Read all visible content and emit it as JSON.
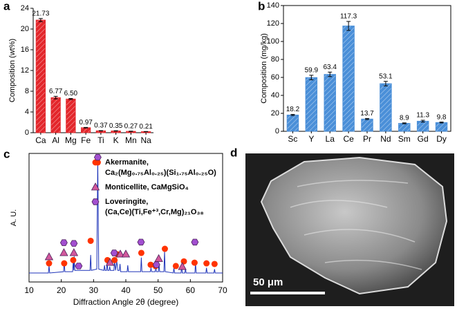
{
  "chart_data": [
    {
      "type": "bar",
      "panel_label": "a",
      "ylabel": "Composition (wt%)",
      "categories": [
        "Ca",
        "Al",
        "Mg",
        "Fe",
        "Ti",
        "K",
        "Mn",
        "Na"
      ],
      "values": [
        21.73,
        6.77,
        6.5,
        0.97,
        0.37,
        0.35,
        0.27,
        0.21
      ],
      "value_labels": [
        "21.73",
        "6.77",
        "6.50",
        "0.97",
        "0.37",
        "0.35",
        "0.27",
        "0.21"
      ],
      "errors": [
        0.3,
        0.25,
        0.1,
        0.05,
        0.03,
        0.03,
        0.03,
        0.02
      ],
      "color": "#e3262b",
      "ylim": [
        0,
        24
      ],
      "yticks": [
        0,
        4,
        8,
        12,
        16,
        20,
        24
      ],
      "box": false
    },
    {
      "type": "bar",
      "panel_label": "b",
      "ylabel": "Composition (mg/kg)",
      "categories": [
        "Sc",
        "Y",
        "La",
        "Ce",
        "Pr",
        "Nd",
        "Sm",
        "Gd",
        "Dy"
      ],
      "values": [
        18.2,
        59.9,
        63.4,
        117.3,
        13.7,
        53.1,
        8.9,
        11.3,
        9.8
      ],
      "errors": [
        0.6,
        2.5,
        2.5,
        5,
        0.6,
        2.5,
        0.5,
        1,
        0.5
      ],
      "color": "#4a8fd8",
      "ylim": [
        0,
        140
      ],
      "yticks": [
        0,
        20,
        40,
        60,
        80,
        100,
        120,
        140
      ],
      "box": true
    },
    {
      "type": "line",
      "panel_label": "c",
      "xlabel": "Diffraction Angle 2θ (degree)",
      "ylabel": "A. U.",
      "color": "#1c32b8",
      "xlim": [
        10,
        70
      ],
      "xticks": [
        10,
        20,
        30,
        40,
        50,
        60,
        70
      ],
      "ylim": [
        0,
        100
      ],
      "x": [
        10,
        16.0,
        16.2,
        16.4,
        20.7,
        20.9,
        21.1,
        23.5,
        23.7,
        23.85,
        24.0,
        24.2,
        28.9,
        29.1,
        29.3,
        31.0,
        31.3,
        31.6,
        33.2,
        33.4,
        33.6,
        34.0,
        34.2,
        34.4,
        34.8,
        35.0,
        35.2,
        36.3,
        36.5,
        36.8,
        37.2,
        37.5,
        38.0,
        38.2,
        38.4,
        40.4,
        40.6,
        40.8,
        44.6,
        44.8,
        45.0,
        47.6,
        47.8,
        48.0,
        49.1,
        49.3,
        49.5,
        50.1,
        50.3,
        50.5,
        51.8,
        52.0,
        52.2,
        54.7,
        54.9,
        55.1,
        57.1,
        57.3,
        57.5,
        58.3,
        58.5,
        58.7,
        61.4,
        61.6,
        61.8,
        64.8,
        65.0,
        65.2,
        67.3,
        67.5,
        67.7,
        70
      ],
      "values": [
        7,
        7,
        13,
        7,
        8,
        16,
        8,
        8,
        16,
        9,
        20,
        9,
        9,
        21,
        9,
        10,
        96,
        10,
        9,
        13,
        9,
        9,
        15,
        9,
        9,
        12,
        9,
        9,
        17,
        9,
        16,
        9,
        9,
        14,
        8,
        8,
        13,
        8,
        8,
        19,
        8,
        8,
        11,
        8,
        8,
        13,
        8,
        8,
        14,
        8,
        8,
        24,
        8,
        7,
        11,
        7,
        7,
        12,
        7,
        7,
        10,
        7,
        7,
        15,
        7,
        7,
        11,
        7,
        7,
        10,
        7,
        7
      ],
      "markers": [
        {
          "name": "Akermanite,",
          "formula": "Ca₂(Mg₀.₇₅Al₀.₂₅)(Si₁.₇₅Al₀.₂₅O)",
          "shape": "circle",
          "color": "#ff3300",
          "x": [
            16.2,
            20.9,
            23.7,
            29.1,
            31.3,
            34.3,
            36.5,
            37.4,
            44.8,
            47.7,
            49.2,
            52.1,
            55.5,
            58.0,
            61.3,
            65.0,
            67.5
          ],
          "y": [
            14.5,
            14.5,
            17,
            32,
            93,
            17,
            17,
            21.5,
            22.6,
            13.4,
            12.4,
            25.8,
            12.4,
            16,
            15,
            14.5,
            14
          ]
        },
        {
          "name": "Monticellite, CaMgSiO₄",
          "shape": "triangle",
          "color": "#d2589c",
          "x": [
            16.2,
            20.8,
            23.9,
            35.1,
            38.3,
            40.0,
            50.2,
            57.5
          ],
          "y": [
            19.4,
            22.6,
            22.6,
            15,
            21.5,
            21.5,
            18,
            11.8
          ]
        },
        {
          "name": "Loveringite,",
          "formula": "(Ca,Ce)(Ti,Fe⁺³,Cr,Mg)₂₁O₃₈",
          "shape": "hexagon",
          "color": "#a24fd0",
          "x": [
            20.8,
            23.9,
            25.4,
            31.3,
            36.4,
            44.7,
            49.5,
            61.4
          ],
          "y": [
            30.6,
            30,
            12.4,
            97,
            22.6,
            31,
            13.4,
            31
          ]
        }
      ]
    }
  ],
  "panel_d": {
    "panel_label": "d",
    "scale_bar": "50 μm"
  }
}
